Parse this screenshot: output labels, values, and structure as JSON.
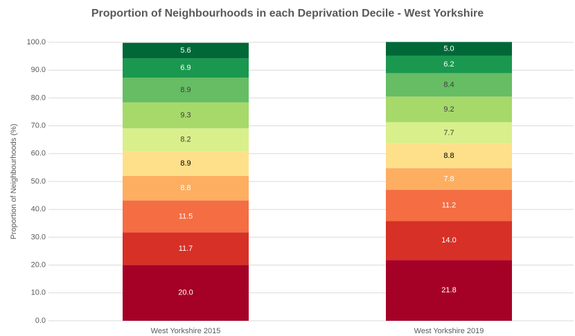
{
  "chart_data": {
    "type": "stacked_bar",
    "title": "Proportion of Neighbourhoods  in each Deprivation Decile - West Yorkshire",
    "ylabel": "Proportion of Neighbourhoods (%)",
    "categories": [
      "West Yorkshire 2015",
      "West Yorkshire 2019"
    ],
    "series": [
      {
        "color": "#a50026",
        "label_color": "#ffffff",
        "values": [
          20.0,
          21.8
        ],
        "value_labels": [
          "20.0",
          "21.8"
        ]
      },
      {
        "color": "#d73027",
        "label_color": "#ffffff",
        "values": [
          11.7,
          14.0
        ],
        "value_labels": [
          "11.7",
          "14.0"
        ]
      },
      {
        "color": "#f46d43",
        "label_color": "#ffffff",
        "values": [
          11.5,
          11.2
        ],
        "value_labels": [
          "11.5",
          "11.2"
        ]
      },
      {
        "color": "#fdae61",
        "label_color": "#ffffff",
        "values": [
          8.8,
          7.8
        ],
        "value_labels": [
          "8.8",
          "7.8"
        ]
      },
      {
        "color": "#fee08b",
        "label_color": "#000000",
        "values": [
          8.9,
          8.8
        ],
        "value_labels": [
          "8.9",
          "8.8"
        ]
      },
      {
        "color": "#d9ef8b",
        "label_color": "#404040",
        "values": [
          8.2,
          7.7
        ],
        "value_labels": [
          "8.2",
          "7.7"
        ]
      },
      {
        "color": "#a6d96a",
        "label_color": "#404040",
        "values": [
          9.3,
          9.2
        ],
        "value_labels": [
          "9.3",
          "9.2"
        ]
      },
      {
        "color": "#66bd63",
        "label_color": "#404040",
        "values": [
          8.9,
          8.4
        ],
        "value_labels": [
          "8.9",
          "8.4"
        ]
      },
      {
        "color": "#1a9850",
        "label_color": "#ffffff",
        "values": [
          6.9,
          6.2
        ],
        "value_labels": [
          "6.9",
          "6.2"
        ]
      },
      {
        "color": "#006837",
        "label_color": "#ffffff",
        "values": [
          5.6,
          5.0
        ],
        "value_labels": [
          "5.6",
          "5.0"
        ]
      }
    ],
    "ylim": [
      0,
      100
    ],
    "yticks": [
      {
        "value": 0,
        "label": "0.0"
      },
      {
        "value": 10,
        "label": "10.0"
      },
      {
        "value": 20,
        "label": "20.0"
      },
      {
        "value": 30,
        "label": "30.0"
      },
      {
        "value": 40,
        "label": "40.0"
      },
      {
        "value": 50,
        "label": "50.0"
      },
      {
        "value": 60,
        "label": "60.0"
      },
      {
        "value": 70,
        "label": "70.0"
      },
      {
        "value": 80,
        "label": "80.0"
      },
      {
        "value": 90,
        "label": "90.0"
      },
      {
        "value": 100,
        "label": "100.0"
      }
    ],
    "grid": true
  }
}
